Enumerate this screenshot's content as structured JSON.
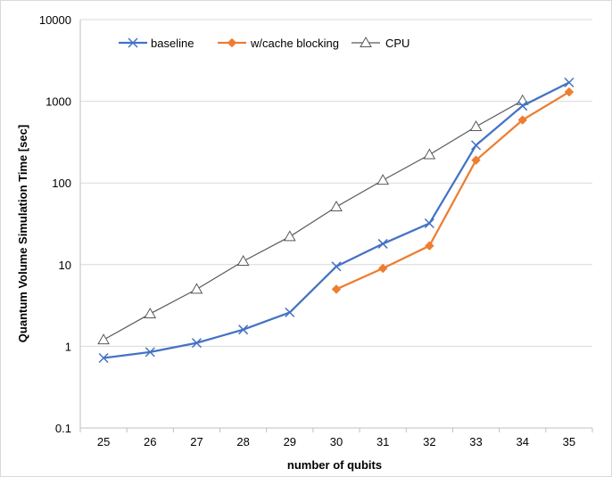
{
  "chart_data": {
    "type": "line",
    "title": "",
    "xlabel": "number of qubits",
    "ylabel": "Quantum Volume Simulation Time [sec]",
    "y_scale": "log",
    "ylim": [
      0.1,
      10000
    ],
    "y_ticks": [
      0.1,
      1,
      10,
      100,
      1000,
      10000
    ],
    "y_tick_labels": [
      "0.1",
      "1",
      "10",
      "100",
      "1000",
      "10000"
    ],
    "categories": [
      "25",
      "26",
      "27",
      "28",
      "29",
      "30",
      "31",
      "32",
      "33",
      "34",
      "35"
    ],
    "grid": true,
    "legend_position": "top-left",
    "series": [
      {
        "name": "baseline",
        "color": "#4472c4",
        "marker": "x",
        "values": [
          0.72,
          0.85,
          1.1,
          1.6,
          2.6,
          9.5,
          18,
          32,
          290,
          880,
          1700
        ]
      },
      {
        "name": "w/cache blocking",
        "color": "#ed7d31",
        "marker": "diamond",
        "values": [
          null,
          null,
          null,
          null,
          null,
          5,
          9,
          17,
          190,
          590,
          1300
        ]
      },
      {
        "name": "CPU",
        "color": "#595959",
        "marker": "triangle",
        "values": [
          1.2,
          2.5,
          5,
          11,
          22,
          51,
          108,
          222,
          490,
          1020,
          null
        ]
      }
    ]
  }
}
